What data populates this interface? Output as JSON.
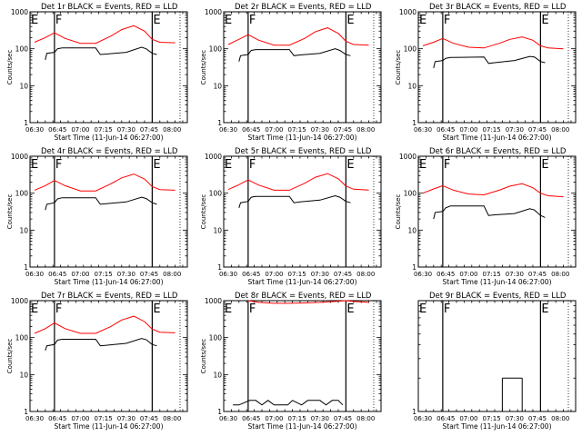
{
  "chart_data": [
    {
      "type": "line",
      "title": "Det 1r BLACK = Events, RED = LLD",
      "xlabel": "Start Time (11-Jun-14 06:27:00)",
      "ylabel": "Counts/sec",
      "yscale": "log",
      "ylim": [
        1,
        1000
      ],
      "yticks": [
        "1",
        "10",
        "100",
        "1000"
      ],
      "xlim": [
        "06:27",
        "08:10"
      ],
      "xticks": [
        "06:30",
        "06:45",
        "07:00",
        "07:15",
        "07:30",
        "07:45",
        "08:00"
      ],
      "markers": [
        {
          "label": "E",
          "time": "06:27"
        },
        {
          "label": "F",
          "time": "06:43"
        },
        {
          "label": "E",
          "time": "07:47"
        }
      ],
      "series": [
        {
          "name": "RED = LLD",
          "color": "#ff0000",
          "x": [
            "06:30",
            "06:37",
            "06:43",
            "06:50",
            "07:00",
            "07:10",
            "07:20",
            "07:27",
            "07:35",
            "07:42",
            "07:47",
            "07:52",
            "08:02"
          ],
          "y": [
            150,
            200,
            270,
            190,
            140,
            140,
            220,
            330,
            420,
            300,
            180,
            150,
            145
          ]
        },
        {
          "name": "BLACK = Events",
          "color": "#000000",
          "x": [
            "06:37",
            "06:38",
            "06:43",
            "06:45",
            "06:48",
            "07:10",
            "07:13",
            "07:17",
            "07:30",
            "07:40",
            "07:43",
            "07:47",
            "07:50"
          ],
          "y": [
            50,
            75,
            80,
            100,
            105,
            105,
            70,
            72,
            80,
            110,
            100,
            75,
            70
          ]
        }
      ]
    },
    {
      "type": "line",
      "title": "Det 2r BLACK = Events, RED = LLD",
      "xlabel": "Start Time (11-Jun-14 06:27:00)",
      "ylabel": "Counts/sec",
      "yscale": "log",
      "ylim": [
        1,
        1000
      ],
      "yticks": [
        "1",
        "10",
        "100",
        "1000"
      ],
      "xlim": [
        "06:27",
        "08:10"
      ],
      "xticks": [
        "06:30",
        "06:45",
        "07:00",
        "07:15",
        "07:30",
        "07:45",
        "08:00"
      ],
      "markers": [
        {
          "label": "E",
          "time": "06:27"
        },
        {
          "label": "F",
          "time": "06:43"
        },
        {
          "label": "E",
          "time": "07:47"
        }
      ],
      "series": [
        {
          "name": "RED = LLD",
          "color": "#ff0000",
          "x": [
            "06:30",
            "06:37",
            "06:43",
            "06:50",
            "07:00",
            "07:10",
            "07:20",
            "07:27",
            "07:35",
            "07:42",
            "07:47",
            "07:52",
            "08:02"
          ],
          "y": [
            130,
            180,
            240,
            170,
            125,
            125,
            190,
            290,
            370,
            260,
            160,
            130,
            125
          ]
        },
        {
          "name": "BLACK = Events",
          "color": "#000000",
          "x": [
            "06:37",
            "06:38",
            "06:43",
            "06:45",
            "06:48",
            "07:10",
            "07:13",
            "07:17",
            "07:30",
            "07:40",
            "07:43",
            "07:47",
            "07:50"
          ],
          "y": [
            45,
            65,
            70,
            90,
            95,
            95,
            65,
            68,
            75,
            100,
            90,
            70,
            65
          ]
        }
      ]
    },
    {
      "type": "line",
      "title": "Det 3r BLACK = Events, RED = LLD",
      "xlabel": "Start Time (11-Jun-14 06:27:00)",
      "ylabel": "Counts/sec",
      "yscale": "log",
      "ylim": [
        1,
        1000
      ],
      "yticks": [
        "1",
        "10",
        "100",
        "1000"
      ],
      "xlim": [
        "06:27",
        "08:10"
      ],
      "xticks": [
        "06:30",
        "06:45",
        "07:00",
        "07:15",
        "07:30",
        "07:45",
        "08:00"
      ],
      "markers": [
        {
          "label": "E",
          "time": "06:27"
        },
        {
          "label": "F",
          "time": "06:43"
        },
        {
          "label": "E",
          "time": "07:47"
        }
      ],
      "series": [
        {
          "name": "RED = LLD",
          "color": "#ff0000",
          "x": [
            "06:30",
            "06:37",
            "06:43",
            "06:50",
            "07:00",
            "07:10",
            "07:20",
            "07:27",
            "07:35",
            "07:42",
            "07:47",
            "07:52",
            "08:02"
          ],
          "y": [
            120,
            150,
            190,
            140,
            110,
            105,
            140,
            180,
            210,
            170,
            120,
            105,
            100
          ]
        },
        {
          "name": "BLACK = Events",
          "color": "#000000",
          "x": [
            "06:37",
            "06:38",
            "06:43",
            "06:45",
            "06:48",
            "07:10",
            "07:13",
            "07:17",
            "07:30",
            "07:40",
            "07:43",
            "07:47",
            "07:50"
          ],
          "y": [
            30,
            45,
            48,
            55,
            58,
            60,
            40,
            42,
            48,
            62,
            60,
            45,
            42
          ]
        }
      ]
    },
    {
      "type": "line",
      "title": "Det 4r BLACK = Events, RED = LLD",
      "xlabel": "Start Time (11-Jun-14 06:27:00)",
      "ylabel": "Counts/sec",
      "yscale": "log",
      "ylim": [
        1,
        1000
      ],
      "yticks": [
        "1",
        "10",
        "100",
        "1000"
      ],
      "xlim": [
        "06:27",
        "08:10"
      ],
      "xticks": [
        "06:30",
        "06:45",
        "07:00",
        "07:15",
        "07:30",
        "07:45",
        "08:00"
      ],
      "markers": [
        {
          "label": "E",
          "time": "06:27"
        },
        {
          "label": "F",
          "time": "06:43"
        },
        {
          "label": "E",
          "time": "07:47"
        }
      ],
      "series": [
        {
          "name": "RED = LLD",
          "color": "#ff0000",
          "x": [
            "06:30",
            "06:37",
            "06:43",
            "06:50",
            "07:00",
            "07:10",
            "07:20",
            "07:27",
            "07:35",
            "07:42",
            "07:47",
            "07:52",
            "08:02"
          ],
          "y": [
            120,
            160,
            220,
            160,
            115,
            115,
            180,
            260,
            330,
            240,
            150,
            125,
            120
          ]
        },
        {
          "name": "BLACK = Events",
          "color": "#000000",
          "x": [
            "06:37",
            "06:38",
            "06:43",
            "06:45",
            "06:48",
            "07:10",
            "07:13",
            "07:17",
            "07:30",
            "07:40",
            "07:43",
            "07:47",
            "07:50"
          ],
          "y": [
            35,
            50,
            55,
            70,
            75,
            75,
            50,
            52,
            58,
            78,
            72,
            55,
            50
          ]
        }
      ]
    },
    {
      "type": "line",
      "title": "Det 5r BLACK = Events, RED = LLD",
      "xlabel": "Start Time (11-Jun-14 06:27:00)",
      "ylabel": "Counts/sec",
      "yscale": "log",
      "ylim": [
        1,
        1000
      ],
      "yticks": [
        "1",
        "10",
        "100",
        "1000"
      ],
      "xlim": [
        "06:27",
        "08:10"
      ],
      "xticks": [
        "06:30",
        "06:45",
        "07:00",
        "07:15",
        "07:30",
        "07:45",
        "08:00"
      ],
      "markers": [
        {
          "label": "E",
          "time": "06:27"
        },
        {
          "label": "F",
          "time": "06:43"
        },
        {
          "label": "E",
          "time": "07:47"
        }
      ],
      "series": [
        {
          "name": "RED = LLD",
          "color": "#ff0000",
          "x": [
            "06:30",
            "06:37",
            "06:43",
            "06:50",
            "07:00",
            "07:10",
            "07:20",
            "07:27",
            "07:35",
            "07:42",
            "07:47",
            "07:52",
            "08:02"
          ],
          "y": [
            125,
            170,
            230,
            165,
            120,
            120,
            185,
            270,
            340,
            245,
            155,
            128,
            122
          ]
        },
        {
          "name": "BLACK = Events",
          "color": "#000000",
          "x": [
            "06:37",
            "06:38",
            "06:43",
            "06:45",
            "06:48",
            "07:10",
            "07:13",
            "07:17",
            "07:30",
            "07:40",
            "07:43",
            "07:47",
            "07:50"
          ],
          "y": [
            40,
            55,
            60,
            78,
            82,
            82,
            55,
            58,
            65,
            85,
            78,
            60,
            55
          ]
        }
      ]
    },
    {
      "type": "line",
      "title": "Det 6r BLACK = Events, RED = LLD",
      "xlabel": "Start Time (11-Jun-14 06:27:00)",
      "ylabel": "Counts/sec",
      "yscale": "log",
      "ylim": [
        1,
        1000
      ],
      "yticks": [
        "1",
        "10",
        "100",
        "1000"
      ],
      "xlim": [
        "06:27",
        "08:10"
      ],
      "xticks": [
        "06:30",
        "06:45",
        "07:00",
        "07:15",
        "07:30",
        "07:45",
        "08:00"
      ],
      "markers": [
        {
          "label": "E",
          "time": "06:27"
        },
        {
          "label": "F",
          "time": "06:43"
        },
        {
          "label": "E",
          "time": "07:47"
        }
      ],
      "series": [
        {
          "name": "RED = LLD",
          "color": "#ff0000",
          "x": [
            "06:30",
            "06:37",
            "06:43",
            "06:50",
            "07:00",
            "07:10",
            "07:20",
            "07:27",
            "07:35",
            "07:42",
            "07:47",
            "07:52",
            "08:02"
          ],
          "y": [
            100,
            130,
            160,
            120,
            95,
            90,
            120,
            155,
            180,
            140,
            100,
            85,
            80
          ]
        },
        {
          "name": "BLACK = Events",
          "color": "#000000",
          "x": [
            "06:37",
            "06:38",
            "06:43",
            "06:45",
            "06:48",
            "07:10",
            "07:13",
            "07:17",
            "07:30",
            "07:40",
            "07:43",
            "07:47",
            "07:50"
          ],
          "y": [
            20,
            30,
            32,
            40,
            45,
            45,
            25,
            26,
            28,
            38,
            35,
            25,
            22
          ]
        }
      ]
    },
    {
      "type": "line",
      "title": "Det 7r BLACK = Events, RED = LLD",
      "xlabel": "Start Time (11-Jun-14 06:27:00)",
      "ylabel": "Counts/sec",
      "yscale": "log",
      "ylim": [
        1,
        1000
      ],
      "yticks": [
        "1",
        "10",
        "100",
        "1000"
      ],
      "xlim": [
        "06:27",
        "08:10"
      ],
      "xticks": [
        "06:30",
        "06:45",
        "07:00",
        "07:15",
        "07:30",
        "07:45",
        "08:00"
      ],
      "markers": [
        {
          "label": "E",
          "time": "06:27"
        },
        {
          "label": "F",
          "time": "06:43"
        },
        {
          "label": "E",
          "time": "07:47"
        }
      ],
      "series": [
        {
          "name": "RED = LLD",
          "color": "#ff0000",
          "x": [
            "06:30",
            "06:37",
            "06:43",
            "06:50",
            "07:00",
            "07:10",
            "07:20",
            "07:27",
            "07:35",
            "07:42",
            "07:47",
            "07:52",
            "08:02"
          ],
          "y": [
            130,
            175,
            250,
            175,
            130,
            130,
            200,
            300,
            380,
            270,
            170,
            140,
            135
          ]
        },
        {
          "name": "BLACK = Events",
          "color": "#000000",
          "x": [
            "06:37",
            "06:38",
            "06:43",
            "06:45",
            "06:48",
            "07:10",
            "07:13",
            "07:17",
            "07:30",
            "07:40",
            "07:43",
            "07:47",
            "07:50"
          ],
          "y": [
            45,
            60,
            65,
            85,
            90,
            90,
            60,
            62,
            70,
            95,
            88,
            65,
            60
          ]
        }
      ]
    },
    {
      "type": "line",
      "title": "Det 8r BLACK = Events, RED = LLD",
      "xlabel": "Start Time (11-Jun-14 06:27:00)",
      "ylabel": "Counts/sec",
      "yscale": "log",
      "ylim": [
        1,
        1000
      ],
      "yticks": [
        "1",
        "10",
        "100",
        "1000"
      ],
      "xlim": [
        "06:27",
        "08:10"
      ],
      "xticks": [
        "06:30",
        "06:45",
        "07:00",
        "07:15",
        "07:30",
        "07:45",
        "08:00"
      ],
      "markers": [
        {
          "label": "E",
          "time": "06:27"
        },
        {
          "label": "F",
          "time": "06:43"
        },
        {
          "label": "E",
          "time": "07:47"
        }
      ],
      "series": [
        {
          "name": "RED = LLD",
          "color": "#ff0000",
          "x": [
            "06:43",
            "06:50",
            "07:00",
            "07:10",
            "07:20",
            "07:30",
            "07:40",
            "07:47",
            "07:52",
            "08:02"
          ],
          "y": [
            1000,
            900,
            850,
            850,
            870,
            900,
            950,
            1000,
            950,
            900
          ]
        },
        {
          "name": "BLACK = Events",
          "color": "#000000",
          "x": [
            "06:33",
            "06:37",
            "06:44",
            "06:48",
            "06:52",
            "06:56",
            "07:00",
            "07:05",
            "07:09",
            "07:12",
            "07:18",
            "07:22",
            "07:26",
            "07:30",
            "07:34",
            "07:38",
            "07:42",
            "07:45"
          ],
          "y": [
            1.5,
            1.5,
            2,
            2,
            1.5,
            2,
            1.5,
            1.5,
            1.5,
            2,
            1.5,
            2,
            2,
            2,
            1.5,
            2,
            2,
            1.5
          ]
        }
      ]
    },
    {
      "type": "line",
      "title": "Det 9r BLACK = Events, RED = LLD",
      "xlabel": "Start Time (11-Jun-14 06:27:00)",
      "ylabel": "",
      "yscale": "log",
      "ylim": [
        1,
        10
      ],
      "yticks": [
        "1"
      ],
      "xlim": [
        "06:27",
        "08:10"
      ],
      "xticks": [
        "06:30",
        "06:45",
        "07:00",
        "07:15",
        "07:30",
        "07:45",
        "08:00"
      ],
      "markers": [
        {
          "label": "E",
          "time": "06:27"
        },
        {
          "label": "F",
          "time": "06:43"
        },
        {
          "label": "E",
          "time": "07:47"
        }
      ],
      "series": [
        {
          "name": "BLACK = Events",
          "color": "#000000",
          "x": [
            "07:22",
            "07:35"
          ],
          "y": [
            2,
            2
          ]
        }
      ]
    }
  ]
}
